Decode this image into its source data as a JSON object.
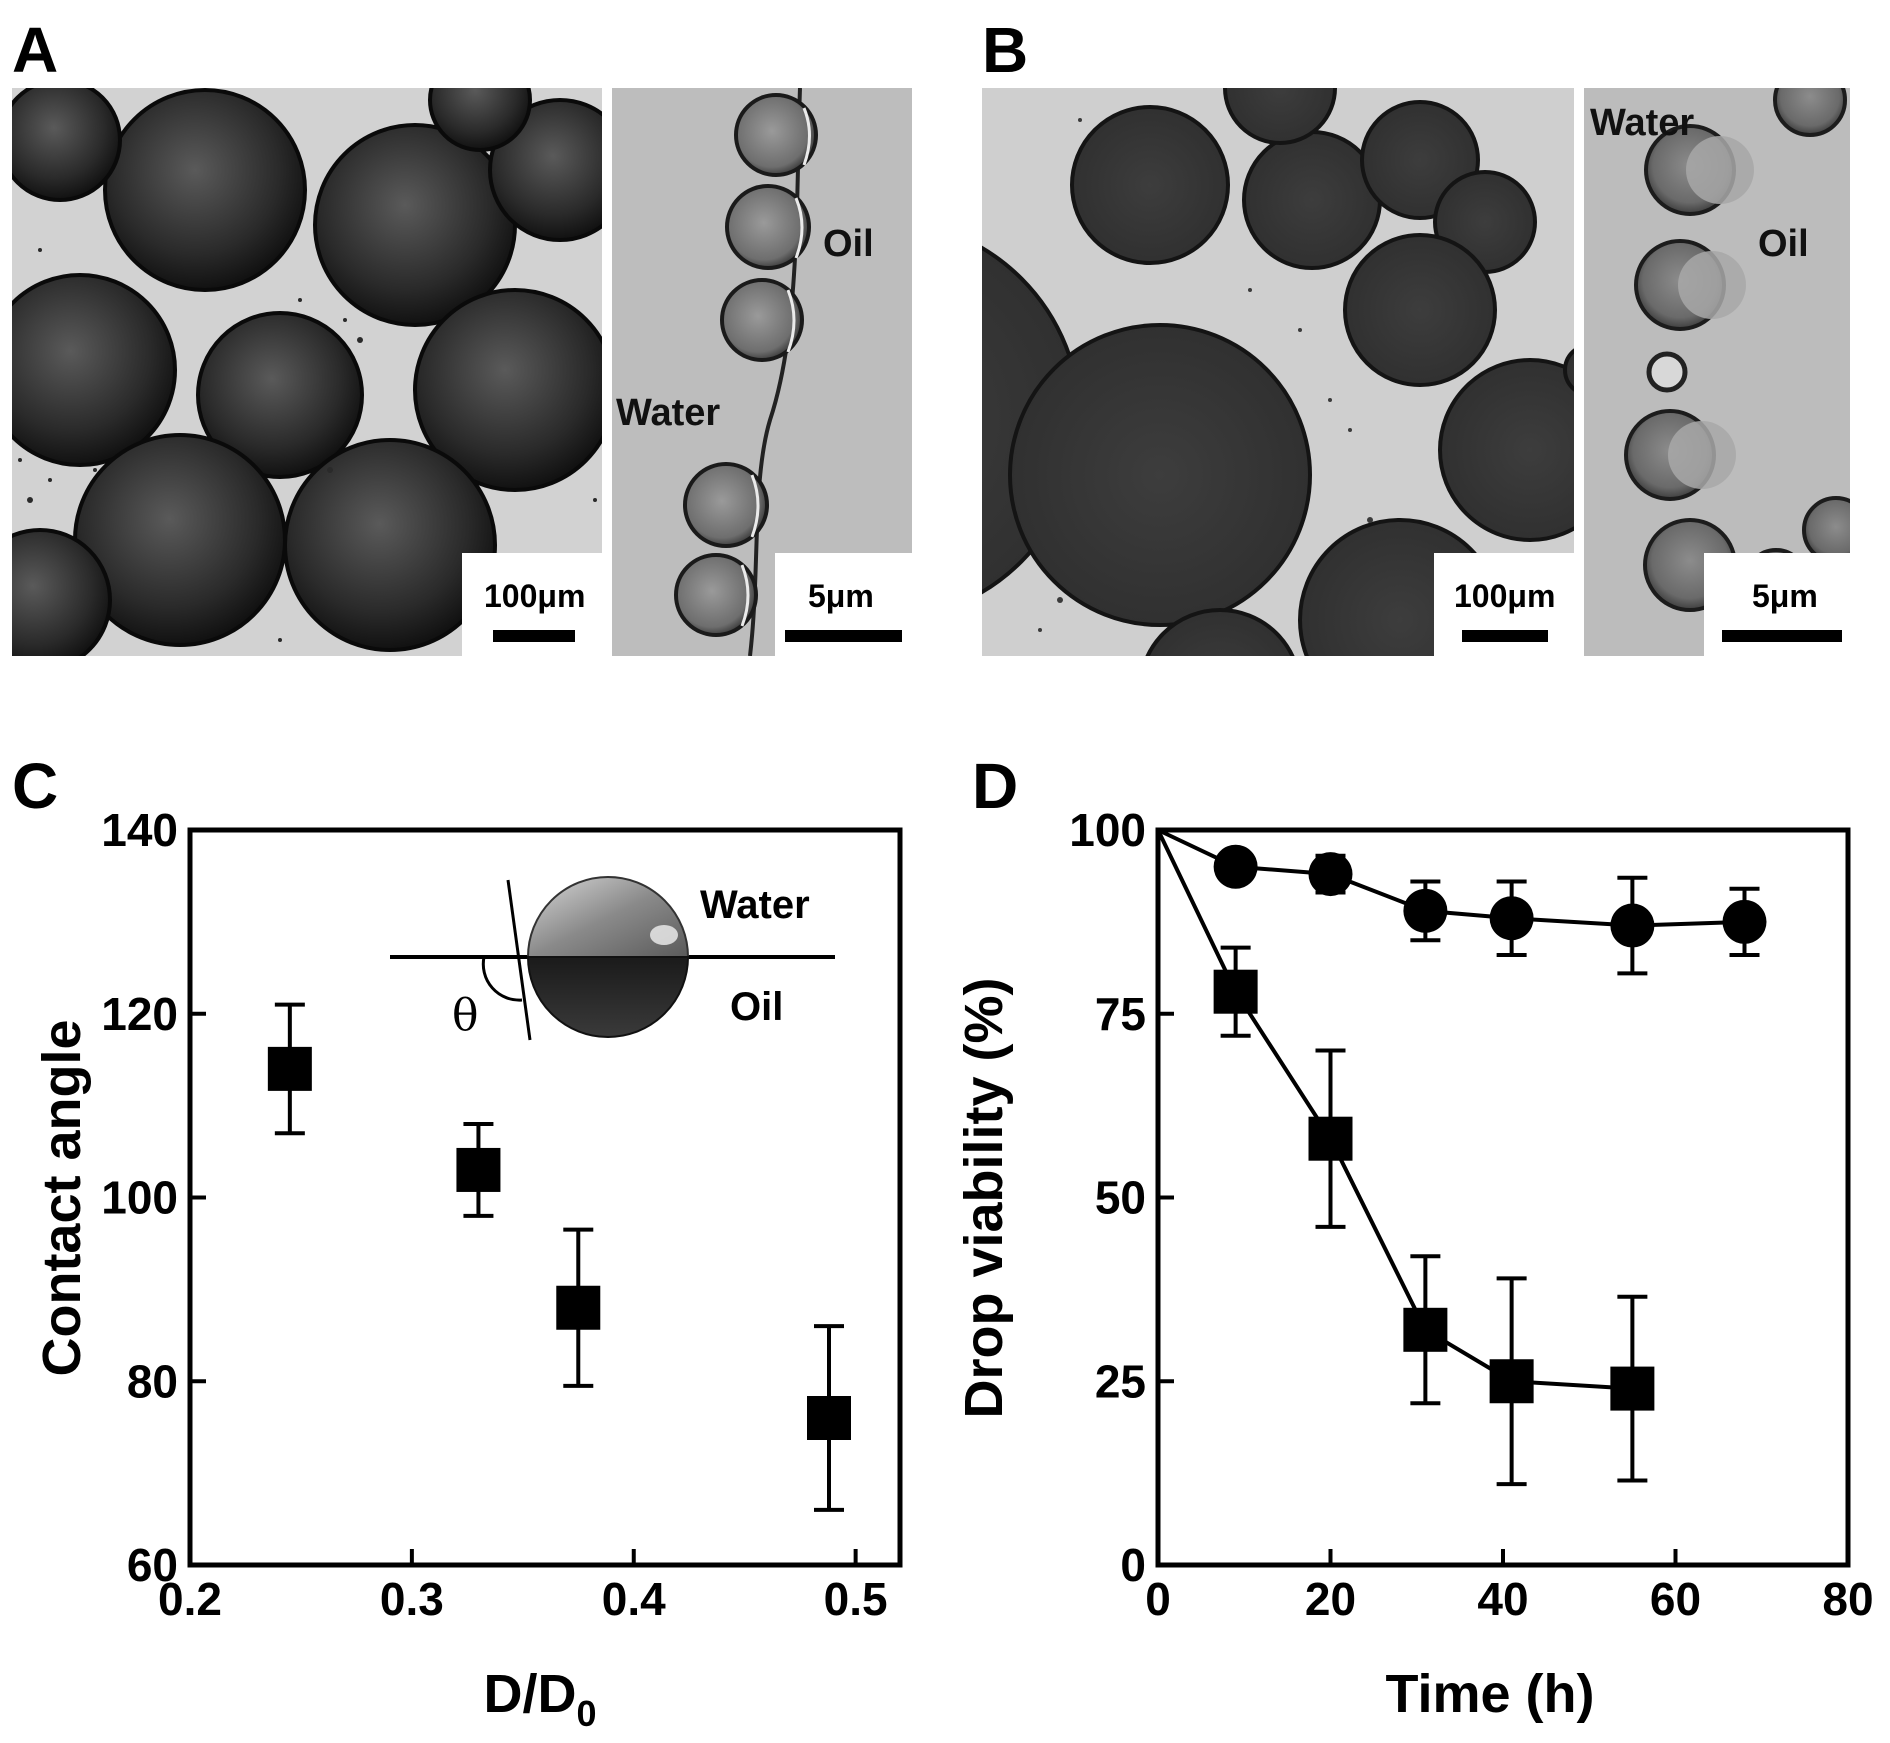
{
  "panels": {
    "A": {
      "label": "A",
      "left_scale": "100μm",
      "right_scale": "5μm",
      "right_labels": {
        "oil": "Oil",
        "water": "Water"
      }
    },
    "B": {
      "label": "B",
      "left_scale": "100μm",
      "right_scale": "5μm",
      "right_labels": {
        "oil": "Oil",
        "water": "Water"
      }
    },
    "C": {
      "label": "C"
    },
    "D": {
      "label": "D"
    }
  },
  "chart_data": [
    {
      "panel": "C",
      "type": "scatter",
      "xlabel": "D/D",
      "xlabel_subscript": "0",
      "ylabel": "Contact angle",
      "xlim": [
        0.2,
        0.52
      ],
      "ylim": [
        60,
        140
      ],
      "xticks": [
        "0.2",
        "0.3",
        "0.4",
        "0.5"
      ],
      "yticks": [
        "60",
        "80",
        "100",
        "120",
        "140"
      ],
      "marker": "square",
      "points": [
        {
          "x": 0.245,
          "y": 114,
          "err_low": 107,
          "err_high": 121
        },
        {
          "x": 0.33,
          "y": 103,
          "err_low": 98,
          "err_high": 108
        },
        {
          "x": 0.375,
          "y": 88,
          "err_low": 79.5,
          "err_high": 96.5
        },
        {
          "x": 0.488,
          "y": 76,
          "err_low": 66,
          "err_high": 86
        }
      ],
      "inset": {
        "water": "Water",
        "oil": "Oil",
        "angle_symbol": "θ"
      }
    },
    {
      "panel": "D",
      "type": "line",
      "xlabel": "Time (h)",
      "ylabel": "Drop viability (%)",
      "xlim": [
        0,
        80
      ],
      "ylim": [
        0,
        100
      ],
      "xticks": [
        "0",
        "20",
        "40",
        "60",
        "80"
      ],
      "yticks": [
        "0",
        "25",
        "50",
        "75",
        "100"
      ],
      "series": [
        {
          "marker": "circle",
          "points": [
            {
              "x": 0,
              "y": 100,
              "err": 0
            },
            {
              "x": 9,
              "y": 95,
              "err": 0
            },
            {
              "x": 20,
              "y": 94,
              "err": 2.5
            },
            {
              "x": 31,
              "y": 89,
              "err": 4
            },
            {
              "x": 41,
              "y": 88,
              "err": 5
            },
            {
              "x": 55,
              "y": 87,
              "err": 6.5
            },
            {
              "x": 68,
              "y": 87.5,
              "err": 4.5
            }
          ]
        },
        {
          "marker": "square",
          "points": [
            {
              "x": 0,
              "y": 100,
              "err": 0
            },
            {
              "x": 9,
              "y": 78,
              "err": 6
            },
            {
              "x": 20,
              "y": 58,
              "err": 12
            },
            {
              "x": 31,
              "y": 32,
              "err": 10
            },
            {
              "x": 41,
              "y": 25,
              "err": 14
            },
            {
              "x": 55,
              "y": 24,
              "err": 12.5
            }
          ]
        }
      ]
    }
  ]
}
